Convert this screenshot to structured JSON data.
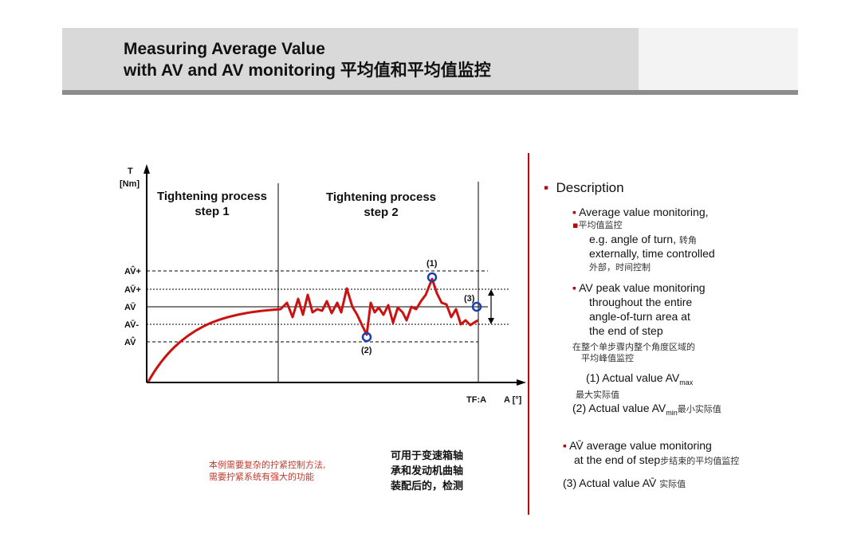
{
  "header": {
    "title_line1": "Measuring Average Value",
    "title_line2": "with AV and AV monitoring 平均值和平均值监控"
  },
  "diagram": {
    "y_axis_label_line1": "T",
    "y_axis_label_line2": "[Nm]",
    "x_axis_end_label": "TF:A",
    "x_axis_label": "A [°]",
    "step1_line1": "Tightening process",
    "step1_line2": "step 1",
    "step2_line1": "Tightening process",
    "step2_line2": "step 2",
    "level_labels": [
      "AV̂+",
      "AV̄+",
      "AV̄",
      "AV̄-",
      "AV̂"
    ],
    "point_labels": [
      "(1)",
      "(2)",
      "(3)"
    ],
    "accent_color": "#cc1111",
    "marker_color": "#1a3fb0"
  },
  "description": {
    "heading": "Description",
    "items": [
      "Average value monitoring,",
      "平均值监控",
      "e.g. angle of turn,",
      "转角",
      "externally, time controlled",
      "外部，时间控制",
      "AV peak value monitoring",
      "throughout the entire",
      "angle-of-turn area at",
      "the end of step",
      "在整个单步骤内整个角度区域的",
      "平均峰值监控",
      "(1) Actual value AV",
      "max",
      "最大实际值",
      "(2) Actual value AV",
      "min",
      "最小实际值",
      "AV̄ average value monitoring",
      "at the end of step",
      "步结束的平均值监控",
      "(3)   Actual value     AV̄",
      "实际值"
    ]
  },
  "notes": {
    "red_line1": "本例需要复杂的拧紧控制方法,",
    "red_line2": "需要拧紧系统有强大的功能",
    "black_line1": "可用于变速箱轴",
    "black_line2": "承和发动机曲轴",
    "black_line3": "装配后的，检测"
  }
}
